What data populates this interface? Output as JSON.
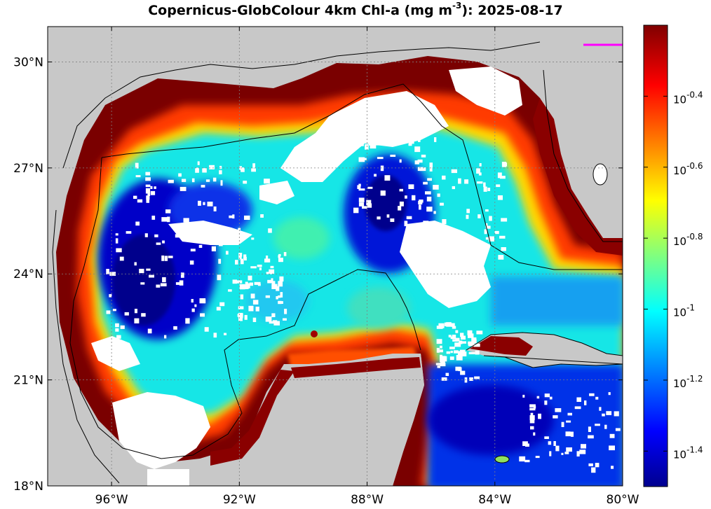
{
  "title": {
    "prefix": "Copernicus-GlobColour 4km Chl-a (mg m",
    "exponent": "-3",
    "suffix": "): 2025-08-17"
  },
  "map": {
    "lon_range": [
      -98,
      -80
    ],
    "lat_range": [
      18,
      31
    ],
    "land_color": "#c8c8c8",
    "nodata_color": "#ffffff",
    "marker_color": "#ff00ff",
    "x_ticks": [
      {
        "value": -96,
        "label": "96°W"
      },
      {
        "value": -92,
        "label": "92°W"
      },
      {
        "value": -88,
        "label": "88°W"
      },
      {
        "value": -84,
        "label": "84°W"
      },
      {
        "value": -80,
        "label": "80°W"
      }
    ],
    "y_ticks": [
      {
        "value": 18,
        "label": "18°N"
      },
      {
        "value": 21,
        "label": "21°N"
      },
      {
        "value": 24,
        "label": "24°N"
      },
      {
        "value": 27,
        "label": "27°N"
      },
      {
        "value": 30,
        "label": "30°N"
      }
    ]
  },
  "colorbar": {
    "scale": "log",
    "range": [
      -1.5,
      -0.2
    ],
    "ticks": [
      {
        "value": -1.4,
        "base": "10",
        "exp": "-1.4"
      },
      {
        "value": -1.2,
        "base": "10",
        "exp": "-1.2"
      },
      {
        "value": -1.0,
        "base": "10",
        "exp": "-1"
      },
      {
        "value": -0.8,
        "base": "10",
        "exp": "-0.8"
      },
      {
        "value": -0.6,
        "base": "10",
        "exp": "-0.6"
      },
      {
        "value": -0.4,
        "base": "10",
        "exp": "-0.4"
      }
    ]
  }
}
